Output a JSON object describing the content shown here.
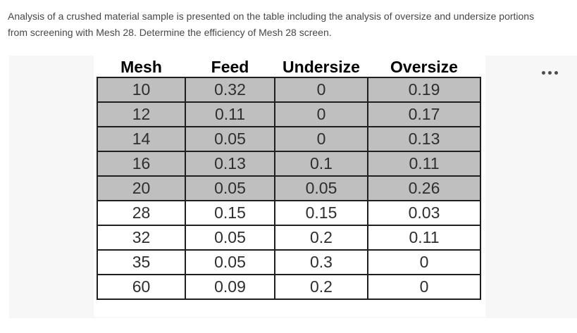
{
  "problem": {
    "lines": [
      "Analysis of a crushed material sample is presented on the table including the analysis of oversize and undersize portions",
      "from screening with Mesh 28. Determine the efficiency of Mesh 28 screen."
    ]
  },
  "attachment": {
    "more_options_label": "More options"
  },
  "table": {
    "columns": [
      "Mesh",
      "Feed",
      "Undersize",
      "Oversize"
    ],
    "rows": [
      {
        "cells": [
          "10",
          "0.32",
          "0",
          "0.19"
        ],
        "shaded": true
      },
      {
        "cells": [
          "12",
          "0.11",
          "0",
          "0.17"
        ],
        "shaded": true
      },
      {
        "cells": [
          "14",
          "0.05",
          "0",
          "0.13"
        ],
        "shaded": true
      },
      {
        "cells": [
          "16",
          "0.13",
          "0.1",
          "0.11"
        ],
        "shaded": true
      },
      {
        "cells": [
          "20",
          "0.05",
          "0.05",
          "0.26"
        ],
        "shaded": true
      },
      {
        "cells": [
          "28",
          "0.15",
          "0.15",
          "0.03"
        ],
        "shaded": false
      },
      {
        "cells": [
          "32",
          "0.05",
          "0.2",
          "0.11"
        ],
        "shaded": false
      },
      {
        "cells": [
          "35",
          "0.05",
          "0.3",
          "0"
        ],
        "shaded": false
      },
      {
        "cells": [
          "60",
          "0.09",
          "0.2",
          "0"
        ],
        "shaded": false
      }
    ]
  },
  "colors": {
    "panel_bg": "#f7f7f7",
    "shaded_row_bg": "#bfbfbf",
    "table_border": "#1f1f1f",
    "body_text": "#474747",
    "ellipsis": "#4d4d4d"
  }
}
